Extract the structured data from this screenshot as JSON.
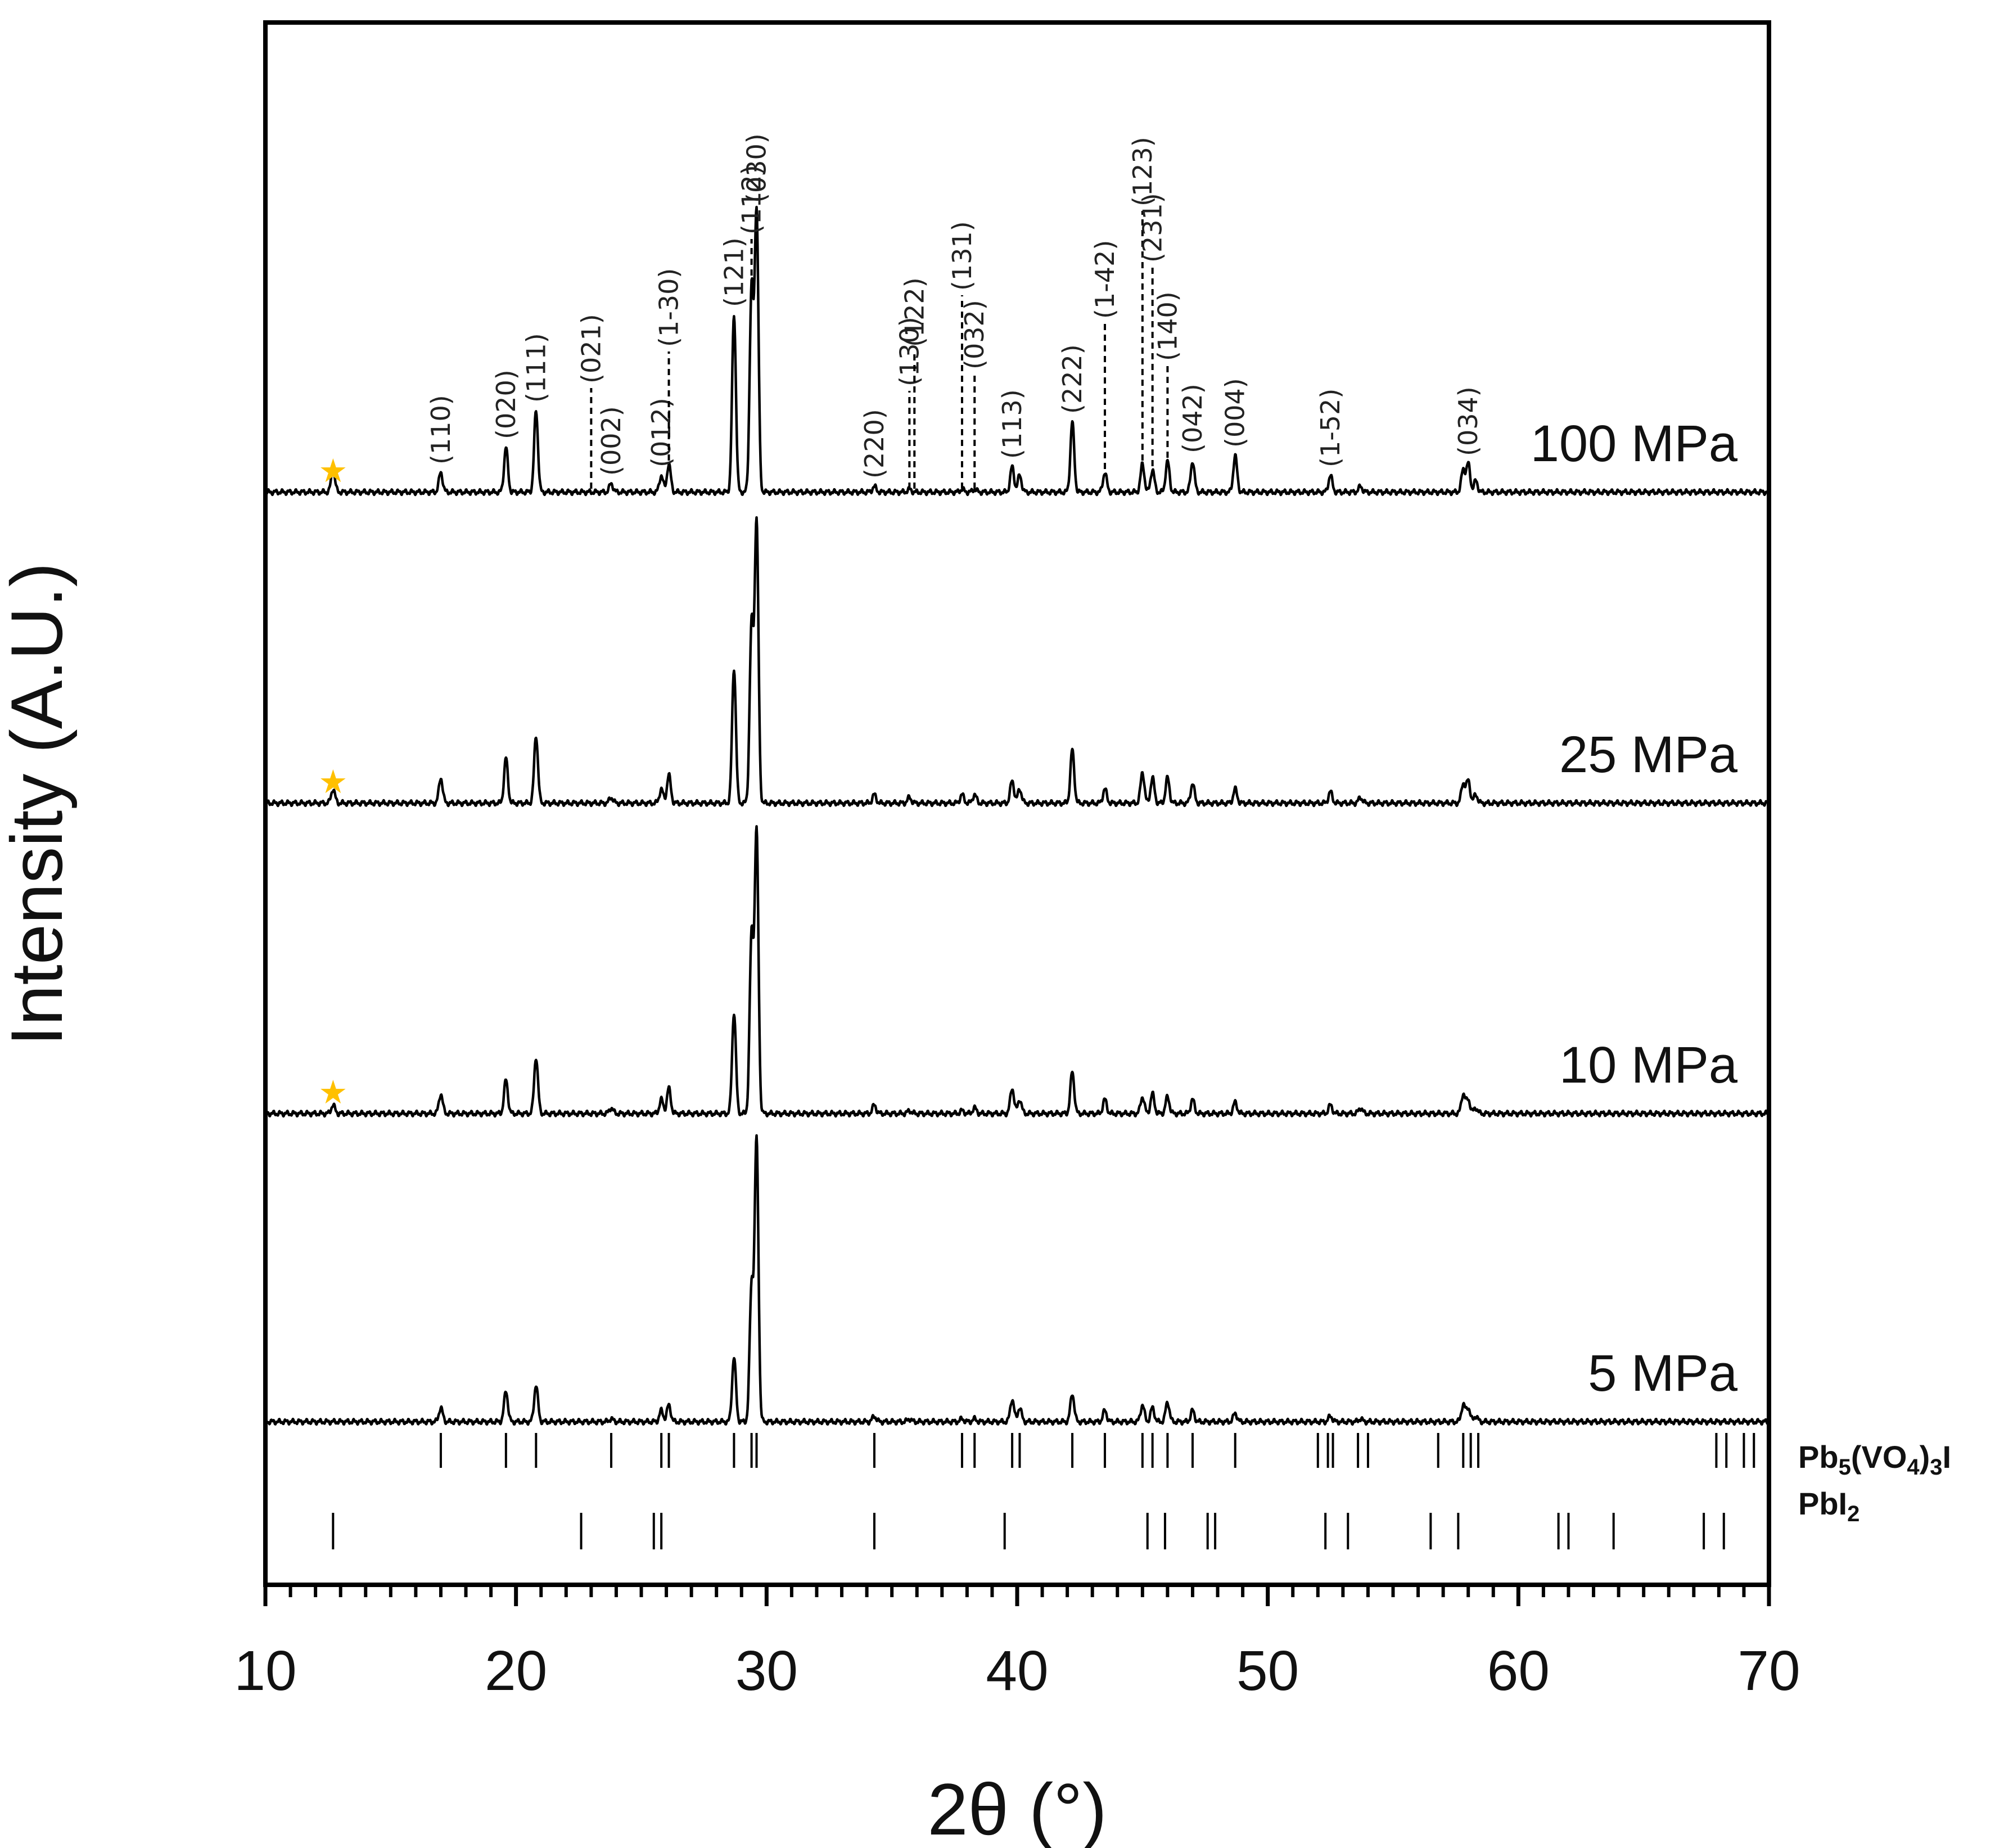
{
  "chart_data": {
    "type": "line",
    "xlabel": "2θ (°)",
    "ylabel": "Intensity (A.U.)",
    "xlim": [
      10,
      70
    ],
    "x_ticks": [
      "10",
      "20",
      "30",
      "40",
      "50",
      "60",
      "70"
    ],
    "y_ticks": "none",
    "grid": false,
    "legend": "none",
    "line_color": "#000000",
    "star_color": "#FFC000",
    "star_symbol": "★",
    "peaks_2theta": [
      12.7,
      17.0,
      19.6,
      20.8,
      23.8,
      25.8,
      26.1,
      28.7,
      29.4,
      29.6,
      34.3,
      35.7,
      37.8,
      38.3,
      39.8,
      40.1,
      42.2,
      43.5,
      45.0,
      45.4,
      46.0,
      47.0,
      48.7,
      52.5,
      53.7,
      57.8,
      58.0,
      58.3
    ],
    "series": [
      {
        "name": "100 MPa",
        "star_2theta": 12.7,
        "relative_intensity": [
          0.05,
          0.07,
          0.16,
          0.29,
          0.03,
          0.06,
          0.1,
          0.63,
          0.72,
          1.0,
          0.02,
          0.01,
          0.01,
          0.01,
          0.09,
          0.06,
          0.25,
          0.07,
          0.1,
          0.08,
          0.11,
          0.11,
          0.13,
          0.06,
          0.02,
          0.08,
          0.1,
          0.04
        ]
      },
      {
        "name": "25 MPa",
        "star_2theta": 12.7,
        "relative_intensity": [
          0.02,
          0.09,
          0.16,
          0.24,
          0.02,
          0.05,
          0.1,
          0.48,
          0.63,
          1.0,
          0.03,
          0.02,
          0.03,
          0.03,
          0.08,
          0.05,
          0.19,
          0.05,
          0.11,
          0.09,
          0.09,
          0.07,
          0.05,
          0.04,
          0.02,
          0.07,
          0.08,
          0.03
        ]
      },
      {
        "name": "10 MPa",
        "star_2theta": 12.7,
        "relative_intensity": [
          0.0,
          0.07,
          0.12,
          0.2,
          0.02,
          0.05,
          0.09,
          0.36,
          0.63,
          1.0,
          0.03,
          0.01,
          0.01,
          0.02,
          0.09,
          0.05,
          0.15,
          0.05,
          0.06,
          0.07,
          0.06,
          0.05,
          0.04,
          0.03,
          0.02,
          0.07,
          0.05,
          0.02
        ]
      },
      {
        "name": "5 MPa",
        "star_2theta": null,
        "relative_intensity": [
          0.0,
          0.05,
          0.11,
          0.13,
          0.01,
          0.04,
          0.06,
          0.23,
          0.48,
          1.0,
          0.02,
          0.01,
          0.01,
          0.01,
          0.08,
          0.05,
          0.1,
          0.04,
          0.06,
          0.05,
          0.07,
          0.04,
          0.03,
          0.02,
          0.01,
          0.06,
          0.05,
          0.02
        ]
      }
    ],
    "hkl_labels": [
      {
        "text": "(110)",
        "x": 17.0,
        "peak": 0.07
      },
      {
        "text": "(020)",
        "x": 19.6,
        "peak": 0.16
      },
      {
        "text": "(111)",
        "x": 20.8,
        "peak": 0.29
      },
      {
        "text": "(021)",
        "x": 23.0,
        "peak": 0.0,
        "dashed": true,
        "top": 0.37
      },
      {
        "text": "(002)",
        "x": 23.8,
        "peak": 0.03
      },
      {
        "text": "(012)",
        "x": 25.8,
        "peak": 0.06
      },
      {
        "text": "(1-30)",
        "x": 26.1,
        "peak": 0.1,
        "dashed": true,
        "top": 0.5
      },
      {
        "text": "(121)",
        "x": 28.7,
        "peak": 0.63
      },
      {
        "text": "(112)",
        "x": 29.4,
        "peak": 0.72,
        "dashed": true,
        "top": 0.9
      },
      {
        "text": "(030)",
        "x": 29.6,
        "peak": 1.0
      },
      {
        "text": "(220)",
        "x": 34.3,
        "peak": 0.02
      },
      {
        "text": "(130)",
        "x": 35.7,
        "peak": 0.0,
        "dashed": true,
        "top": 0.36
      },
      {
        "text": "(122)",
        "x": 35.9,
        "peak": 0.0,
        "dashed": true,
        "top": 0.5
      },
      {
        "text": "(131)",
        "x": 37.8,
        "peak": 0.0,
        "dashed": true,
        "top": 0.7
      },
      {
        "text": "(032)",
        "x": 38.3,
        "peak": 0.0,
        "dashed": true,
        "top": 0.42
      },
      {
        "text": "(113)",
        "x": 39.8,
        "peak": 0.09
      },
      {
        "text": "(222)",
        "x": 42.2,
        "peak": 0.25
      },
      {
        "text": "(1-42)",
        "x": 43.5,
        "peak": 0.07,
        "dashed": true,
        "top": 0.6
      },
      {
        "text": "(123)",
        "x": 45.0,
        "peak": 0.1,
        "dashed": true,
        "top": 1.0
      },
      {
        "text": "(231)",
        "x": 45.4,
        "peak": 0.08,
        "dashed": true,
        "top": 0.8
      },
      {
        "text": "(140)",
        "x": 46.0,
        "peak": 0.11,
        "dashed": true,
        "top": 0.45
      },
      {
        "text": "(042)",
        "x": 47.0,
        "peak": 0.11
      },
      {
        "text": "(004)",
        "x": 48.7,
        "peak": 0.13
      },
      {
        "text": "(1-52)",
        "x": 52.5,
        "peak": 0.06
      },
      {
        "text": "(034)",
        "x": 58.0,
        "peak": 0.1
      }
    ],
    "reference_patterns": [
      {
        "name_parts": [
          "Pb",
          "5",
          "(VO",
          "4",
          ")",
          "3",
          "I"
        ],
        "positions_2theta": [
          17.0,
          19.6,
          20.8,
          23.8,
          25.8,
          26.1,
          28.7,
          29.4,
          29.6,
          34.3,
          37.8,
          38.3,
          39.8,
          40.1,
          42.2,
          43.5,
          45.0,
          45.4,
          46.0,
          47.0,
          48.7,
          52.0,
          52.4,
          52.6,
          53.6,
          54.0,
          56.8,
          57.8,
          58.1,
          58.4,
          67.9,
          68.3,
          69.0,
          69.4
        ]
      },
      {
        "name_parts": [
          "PbI",
          "2"
        ],
        "positions_2theta": [
          12.7,
          22.6,
          25.5,
          25.8,
          34.3,
          39.5,
          45.2,
          45.9,
          47.6,
          47.9,
          52.3,
          53.2,
          56.5,
          57.6,
          61.6,
          62.0,
          63.8,
          67.4,
          68.2
        ]
      }
    ]
  }
}
